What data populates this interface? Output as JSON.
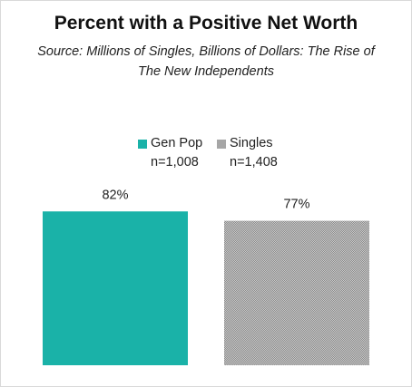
{
  "chart_data": {
    "type": "bar",
    "title": "Percent with a Positive Net Worth",
    "subtitle": "Source: Millions of Singles, Billions of Dollars: The Rise of The New Independents",
    "categories": [
      "Gen Pop",
      "Singles"
    ],
    "series": [
      {
        "values": [
          82,
          77
        ],
        "data_labels": [
          "82%",
          "77%"
        ]
      }
    ],
    "legend": {
      "placement": "top-center",
      "entries": [
        {
          "label": "Gen Pop",
          "n": "n=1,008",
          "color": "#1AB2A8",
          "pattern": "solid"
        },
        {
          "label": "Singles",
          "n": "n=1,408",
          "color": "#A6A6A6",
          "pattern": "checker"
        }
      ]
    },
    "ylim": [
      0,
      100
    ],
    "grid": false,
    "xlabel": "",
    "ylabel": ""
  }
}
